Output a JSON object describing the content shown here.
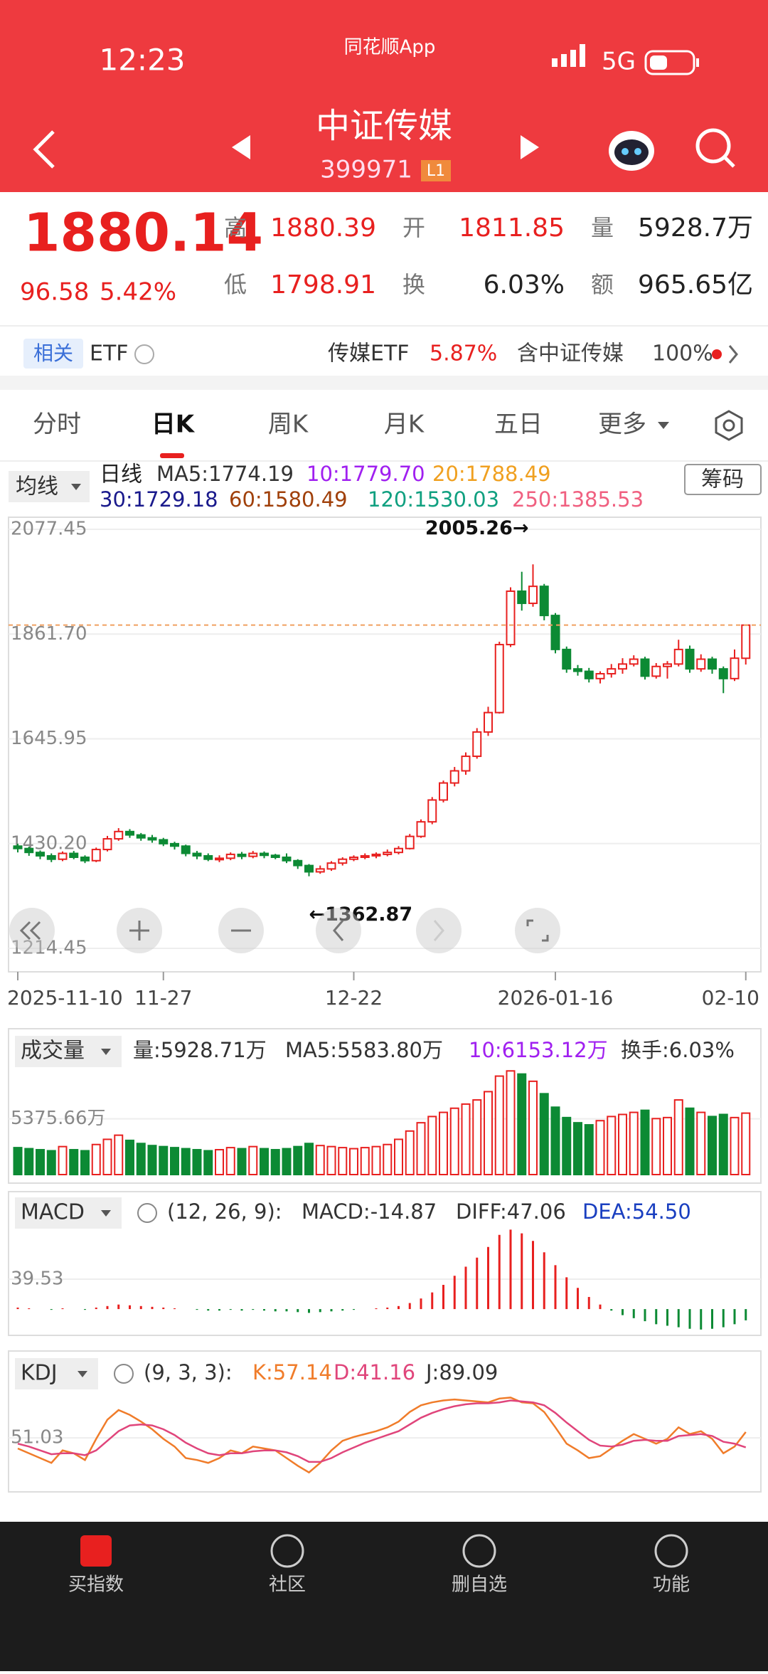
{
  "status": {
    "time": "12:23",
    "app": "同花顺App",
    "network": "5G"
  },
  "header": {
    "title": "中证传媒",
    "code": "399971",
    "badge": "L1"
  },
  "quote": {
    "price": "1880.14",
    "change": "96.58",
    "change_pct": "5.42%",
    "fields": [
      {
        "label": "高",
        "value": "1880.39",
        "color": "#e8201f"
      },
      {
        "label": "开",
        "value": "1811.85",
        "color": "#e8201f"
      },
      {
        "label": "量",
        "value": "5928.7万",
        "color": "#222"
      },
      {
        "label": "低",
        "value": "1798.91",
        "color": "#e8201f"
      },
      {
        "label": "换",
        "value": "6.03%",
        "color": "#222"
      },
      {
        "label": "额",
        "value": "965.65亿",
        "color": "#222"
      }
    ]
  },
  "etf": {
    "tag": "相关",
    "name": "ETF",
    "fund": "传媒ETF",
    "fund_change": "5.87%",
    "holding_label": "含中证传媒",
    "holding": "100%"
  },
  "tabs": [
    "分时",
    "日K",
    "周K",
    "月K",
    "五日",
    "更多"
  ],
  "ma_legend": {
    "selector": "均线",
    "period": "日线",
    "button": "筹码",
    "items": [
      {
        "text": "MA5:1774.19",
        "color": "#333333"
      },
      {
        "text": "10:1779.70",
        "color": "#a020f0"
      },
      {
        "text": "20:1788.49",
        "color": "#f0a020"
      },
      {
        "text": "30:1729.18",
        "color": "#1a1a8c"
      },
      {
        "text": "60:1580.49",
        "color": "#a0400a"
      },
      {
        "text": "120:1530.03",
        "color": "#10a080"
      },
      {
        "text": "250:1385.53",
        "color": "#f06080"
      }
    ]
  },
  "chart_data": [
    {
      "type": "candlestick",
      "up_color": "#e8201f",
      "down_color": "#0c8a34",
      "last_line_color": "#f0a060",
      "categories": [
        "2025-11-10",
        null,
        null,
        null,
        null,
        null,
        null,
        null,
        null,
        null,
        null,
        null,
        null,
        "11-27",
        null,
        null,
        null,
        null,
        null,
        null,
        null,
        null,
        null,
        null,
        null,
        null,
        null,
        null,
        null,
        null,
        "12-22",
        null,
        null,
        null,
        null,
        null,
        null,
        null,
        null,
        null,
        null,
        null,
        null,
        null,
        null,
        null,
        null,
        null,
        "2026-01-16",
        null,
        null,
        null,
        null,
        null,
        null,
        null,
        null,
        null,
        null,
        null,
        null,
        null,
        null,
        null,
        null,
        "02-10"
      ],
      "open": [
        1425,
        1420,
        1412,
        1405,
        1398,
        1410,
        1402,
        1395,
        1418,
        1440,
        1455,
        1448,
        1442,
        1438,
        1430,
        1425,
        1410,
        1405,
        1398,
        1400,
        1408,
        1404,
        1410,
        1406,
        1402,
        1395,
        1385,
        1372,
        1378,
        1390,
        1398,
        1402,
        1405,
        1408,
        1412,
        1420,
        1445,
        1475,
        1520,
        1555,
        1580,
        1610,
        1660,
        1700,
        1840,
        1950,
        1925,
        1960,
        1900,
        1830,
        1790,
        1785,
        1770,
        1780,
        1790,
        1800,
        1810,
        1775,
        1795,
        1800,
        1830,
        1790,
        1810,
        1790,
        1770,
        1811.85
      ],
      "high": [
        1430,
        1424,
        1416,
        1410,
        1414,
        1415,
        1406,
        1422,
        1446,
        1462,
        1460,
        1452,
        1448,
        1442,
        1434,
        1428,
        1415,
        1410,
        1406,
        1412,
        1413,
        1415,
        1414,
        1409,
        1410,
        1398,
        1388,
        1385,
        1394,
        1402,
        1406,
        1410,
        1412,
        1418,
        1425,
        1450,
        1480,
        1526,
        1560,
        1588,
        1618,
        1668,
        1712,
        1846,
        1958,
        1990,
        2005.26,
        1965,
        1905,
        1836,
        1798,
        1792,
        1785,
        1800,
        1812,
        1818,
        1815,
        1802,
        1806,
        1850,
        1838,
        1820,
        1815,
        1795,
        1830,
        1880.39
      ],
      "low": [
        1412,
        1405,
        1398,
        1392,
        1394,
        1398,
        1390,
        1392,
        1414,
        1436,
        1442,
        1436,
        1432,
        1425,
        1418,
        1404,
        1398,
        1394,
        1392,
        1396,
        1398,
        1400,
        1400,
        1398,
        1390,
        1378,
        1362.87,
        1368,
        1374,
        1385,
        1394,
        1398,
        1400,
        1404,
        1408,
        1418,
        1442,
        1470,
        1515,
        1548,
        1572,
        1605,
        1652,
        1698,
        1835,
        1910,
        1918,
        1890,
        1822,
        1782,
        1776,
        1762,
        1760,
        1772,
        1780,
        1795,
        1768,
        1770,
        1770,
        1795,
        1782,
        1784,
        1780,
        1740,
        1765,
        1798.91
      ],
      "close": [
        1420,
        1412,
        1405,
        1398,
        1410,
        1402,
        1395,
        1418,
        1440,
        1455,
        1448,
        1442,
        1438,
        1430,
        1425,
        1410,
        1405,
        1398,
        1400,
        1408,
        1404,
        1410,
        1406,
        1402,
        1395,
        1385,
        1372,
        1378,
        1390,
        1398,
        1402,
        1405,
        1408,
        1412,
        1420,
        1445,
        1475,
        1520,
        1555,
        1580,
        1610,
        1660,
        1700,
        1840,
        1950,
        1925,
        1960,
        1900,
        1830,
        1790,
        1785,
        1770,
        1780,
        1790,
        1800,
        1810,
        1775,
        1795,
        1800,
        1830,
        1790,
        1810,
        1790,
        1770,
        1812,
        1880.14
      ],
      "ylim": [
        1214.45,
        2077.45
      ],
      "yticks": [
        2077.45,
        {
          "value": 1861.7,
          "label": "1861.70"
        },
        1645.95,
        {
          "value": 1430.2,
          "label": "1430.20"
        },
        1214.45
      ],
      "annotations": [
        {
          "text": "2005.26→"
        },
        {
          "text": "←1362.87"
        }
      ]
    },
    {
      "type": "bar",
      "selector": "成交量",
      "legend": [
        {
          "text": "量:5928.71万",
          "color": "#333333"
        },
        {
          "text": "MA5:5583.80万",
          "color": "#333333"
        },
        {
          "text": "10:6153.12万",
          "color": "#a020f0"
        },
        {
          "text": "换手:6.03%",
          "color": "#333333"
        }
      ],
      "values": [
        2600,
        2500,
        2400,
        2300,
        2700,
        2400,
        2300,
        2900,
        3400,
        3800,
        3300,
        3000,
        2800,
        2700,
        2600,
        2500,
        2400,
        2300,
        2400,
        2600,
        2500,
        2700,
        2500,
        2400,
        2500,
        2700,
        3000,
        2800,
        2700,
        2600,
        2500,
        2600,
        2700,
        2900,
        3400,
        4200,
        5000,
        5600,
        6000,
        6400,
        6800,
        7200,
        8000,
        9500,
        10000,
        9700,
        9000,
        7800,
        6500,
        5500,
        5000,
        4800,
        5200,
        5600,
        5800,
        6000,
        6200,
        5400,
        5500,
        7200,
        6400,
        6000,
        5600,
        5800,
        5500,
        5928.71
      ],
      "ylim": [
        0,
        10500
      ],
      "yticks": [
        {
          "value": 5375.66,
          "label": "5375.66万"
        }
      ]
    },
    {
      "type": "bar",
      "selector": "MACD",
      "params": "(12, 26, 9):",
      "up_color": "#e8201f",
      "down_color": "#0c8a34",
      "legend": [
        {
          "text": "MACD:-14.87",
          "color": "#333333"
        },
        {
          "text": "DIFF:47.06",
          "color": "#333333"
        },
        {
          "text": "DEA:54.50",
          "color": "#1a3fc0"
        }
      ],
      "values": [
        2,
        1,
        0,
        -1,
        1,
        0,
        -1,
        2,
        4,
        6,
        5,
        4,
        3,
        2,
        1,
        0,
        -1,
        -2,
        -2,
        -1,
        -2,
        -1,
        -2,
        -3,
        -3,
        -4,
        -5,
        -4,
        -3,
        -2,
        -1,
        0,
        1,
        2,
        4,
        8,
        14,
        22,
        32,
        44,
        56,
        68,
        82,
        98,
        105,
        100,
        90,
        75,
        58,
        42,
        28,
        16,
        6,
        -2,
        -8,
        -12,
        -16,
        -20,
        -22,
        -24,
        -26,
        -27,
        -26,
        -24,
        -20,
        -14.87
      ],
      "ylim": [
        -30,
        110
      ],
      "yticks": [
        39.53
      ]
    },
    {
      "type": "line",
      "selector": "KDJ",
      "params": "(9, 3, 3):",
      "legend": [
        {
          "text": "K:57.14",
          "color": "#f07c2a"
        },
        {
          "text": "D:41.16",
          "color": "#e0457b"
        },
        {
          "text": "J:89.09",
          "color": "#333333"
        }
      ],
      "series": [
        {
          "color": "#f07c2a",
          "values": [
            40,
            35,
            30,
            25,
            38,
            35,
            28,
            50,
            70,
            80,
            75,
            68,
            60,
            50,
            42,
            30,
            28,
            25,
            30,
            38,
            35,
            42,
            40,
            38,
            30,
            22,
            15,
            25,
            38,
            48,
            52,
            55,
            58,
            62,
            68,
            78,
            85,
            88,
            90,
            91,
            90,
            89,
            88,
            92,
            93,
            88,
            87,
            78,
            62,
            45,
            38,
            30,
            32,
            40,
            48,
            55,
            50,
            45,
            50,
            62,
            55,
            58,
            50,
            35,
            42,
            57.14
          ]
        },
        {
          "color": "#e0457b",
          "values": [
            45,
            42,
            38,
            34,
            35,
            35,
            33,
            38,
            48,
            58,
            64,
            65,
            64,
            60,
            54,
            46,
            40,
            35,
            33,
            35,
            35,
            37,
            38,
            38,
            36,
            32,
            26,
            26,
            30,
            36,
            41,
            46,
            50,
            54,
            58,
            65,
            72,
            77,
            81,
            84,
            86,
            87,
            87,
            88,
            90,
            89,
            88,
            85,
            77,
            67,
            58,
            49,
            43,
            42,
            44,
            48,
            49,
            48,
            48,
            53,
            54,
            55,
            53,
            47,
            45,
            41.16
          ]
        }
      ],
      "ylim": [
        0,
        100
      ],
      "yticks": [
        51.03
      ]
    }
  ],
  "nav": [
    "买指数",
    "社区",
    "删自选",
    "功能"
  ]
}
